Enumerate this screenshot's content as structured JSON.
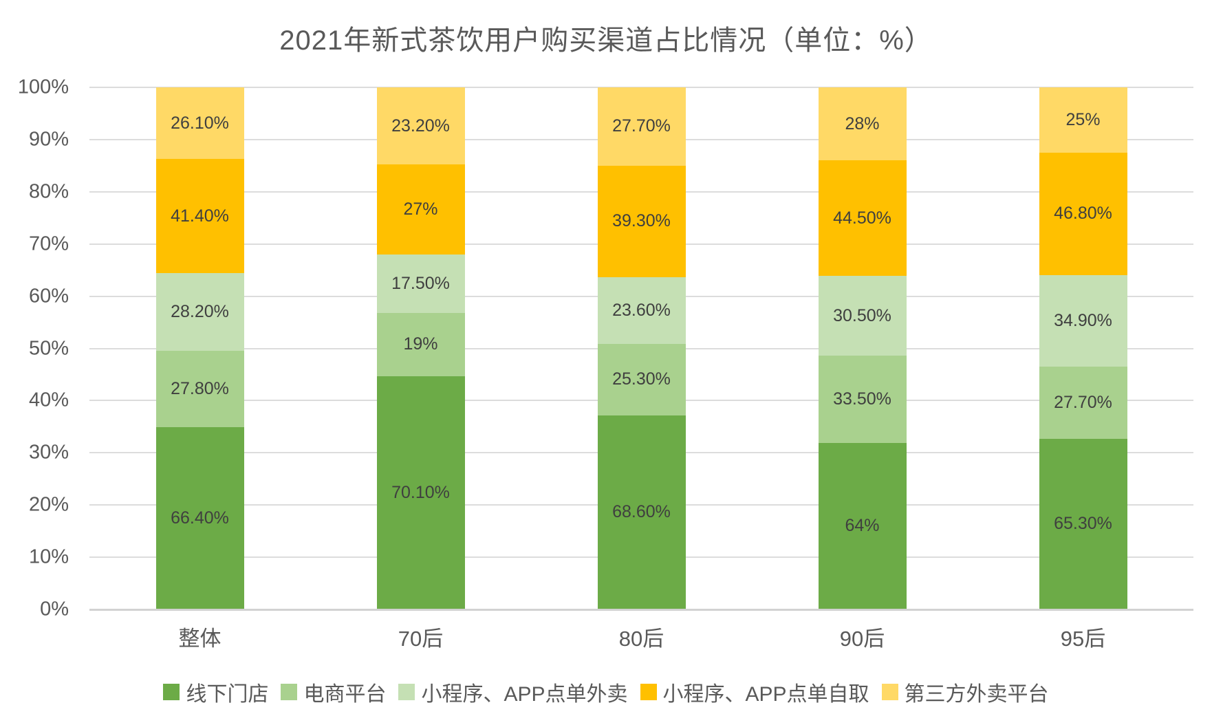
{
  "title": "2021年新式茶饮用户购买渠道占比情况（单位：%）",
  "colors": {
    "background": "#ffffff",
    "title_text": "#595959",
    "axis_text": "#595959",
    "data_label_text": "#3f3f3f",
    "gridline": "#dcdcdc",
    "axis_line": "#d2d2d2"
  },
  "chart_data": {
    "type": "bar",
    "subtype": "stacked-100-percent",
    "title": "2021年新式茶饮用户购买渠道占比情况（单位：%）",
    "categories": [
      "整体",
      "70后",
      "80后",
      "90后",
      "95后"
    ],
    "series": [
      {
        "name": "线下门店",
        "color": "#6cab47",
        "values": [
          66.4,
          70.1,
          68.6,
          64,
          65.3
        ],
        "labels": [
          "66.40%",
          "70.10%",
          "68.60%",
          "64%",
          "65.30%"
        ]
      },
      {
        "name": "电商平台",
        "color": "#a9d18e",
        "values": [
          27.8,
          19,
          25.3,
          33.5,
          27.7
        ],
        "labels": [
          "27.80%",
          "19%",
          "25.30%",
          "33.50%",
          "27.70%"
        ]
      },
      {
        "name": "小程序、APP点单外卖",
        "color": "#c5e0b4",
        "values": [
          28.2,
          17.5,
          23.6,
          30.5,
          34.9
        ],
        "labels": [
          "28.20%",
          "17.50%",
          "23.60%",
          "30.50%",
          "34.90%"
        ]
      },
      {
        "name": "小程序、APP点单自取",
        "color": "#ffc000",
        "values": [
          41.4,
          27,
          39.3,
          44.5,
          46.8
        ],
        "labels": [
          "41.40%",
          "27%",
          "39.30%",
          "44.50%",
          "46.80%"
        ]
      },
      {
        "name": "第三方外卖平台",
        "color": "#ffd966",
        "values": [
          26.1,
          23.2,
          27.7,
          28,
          25
        ],
        "labels": [
          "26.10%",
          "23.20%",
          "27.70%",
          "28%",
          "25%"
        ]
      }
    ],
    "y_axis": {
      "ticks": [
        "0%",
        "10%",
        "20%",
        "30%",
        "40%",
        "50%",
        "60%",
        "70%",
        "80%",
        "90%",
        "100%"
      ],
      "min": 0,
      "max": 100
    },
    "normalized_per_category": true,
    "grid": true,
    "legend_position": "bottom",
    "data_labels": "inside-center"
  }
}
